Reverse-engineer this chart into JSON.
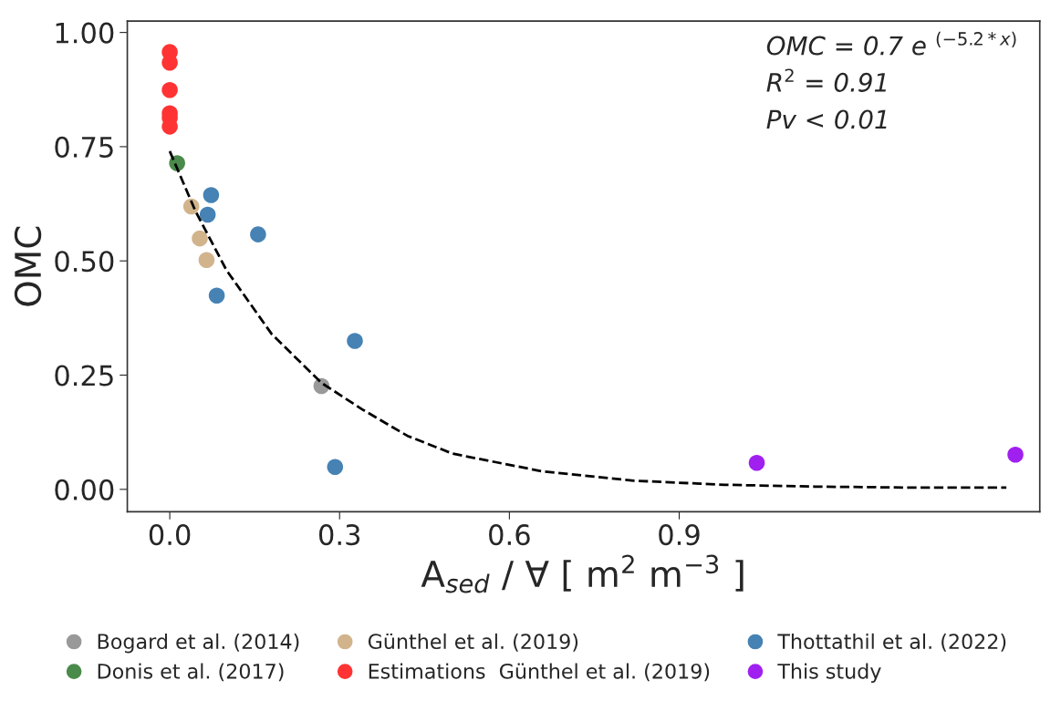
{
  "chart_data": {
    "type": "scatter",
    "xlabel": "A$_{sed}$ / ∀ [ m$^{2}$ m$^{−3}$ ]",
    "ylabel": "OMC",
    "annotations": [
      "OMC = 0.7 e $^{(−5.2*x)}$",
      "R$^{2}$ = 0.91",
      "Pv < 0.01"
    ],
    "xlim": [
      -0.075,
      1.537
    ],
    "xticks": [
      {
        "value": 0,
        "label": "0.0"
      },
      0.3,
      0.6,
      0.9
    ],
    "ylim": [
      -0.049,
      1.025
    ],
    "yticks": [
      {
        "value": 0,
        "label": "0.00"
      },
      0.25,
      {
        "value": 0.5,
        "label": "0.50"
      },
      0.75,
      {
        "value": 1,
        "label": "1.00"
      }
    ],
    "grid": false,
    "legend": "bottom",
    "marker": "circle",
    "series": [
      {
        "name": "Bogard et al. (2014)",
        "color": "#999999",
        "x": [
          0.268
        ],
        "values": [
          0.226
        ]
      },
      {
        "name": "Donis et al. (2017)",
        "color": "#4a8a4a",
        "x": [
          0.013
        ],
        "values": [
          0.714
        ]
      },
      {
        "name": "Günthel et al. (2019)",
        "color": "#d2b48c",
        "x": [
          0.038,
          0.053,
          0.065
        ],
        "values": [
          0.619,
          0.549,
          0.502
        ]
      },
      {
        "name": "Estimations  Günthel et al. (2019)",
        "color": "#ff3333",
        "x": [
          0,
          0,
          0,
          0,
          0,
          0
        ],
        "values": [
          0.957,
          0.934,
          0.874,
          0.823,
          0.813,
          0.794
        ]
      },
      {
        "name": "Thottathil et al. (2022)",
        "color": "#4682b4",
        "x": [
          0.073,
          0.067,
          0.156,
          0.083,
          0.327,
          0.292
        ],
        "values": [
          0.644,
          0.601,
          0.558,
          0.424,
          0.325,
          0.049
        ]
      },
      {
        "name": "This study",
        "color": "#a020f0",
        "x": [
          1.037,
          1.494
        ],
        "values": [
          0.058,
          0.076
        ]
      },
      {
        "type": "line",
        "color": "#000000",
        "line_style": "dashed",
        "marker": "none",
        "x": [
          0,
          0.045,
          0.1,
          0.18,
          0.268,
          0.34,
          0.42,
          0.5,
          0.66,
          0.82,
          0.98,
          1.14,
          1.3,
          1.478
        ],
        "values": [
          0.74,
          0.61,
          0.48,
          0.34,
          0.233,
          0.175,
          0.117,
          0.078,
          0.039,
          0.019,
          0.01,
          0.006,
          0.004,
          0.004
        ]
      }
    ]
  }
}
